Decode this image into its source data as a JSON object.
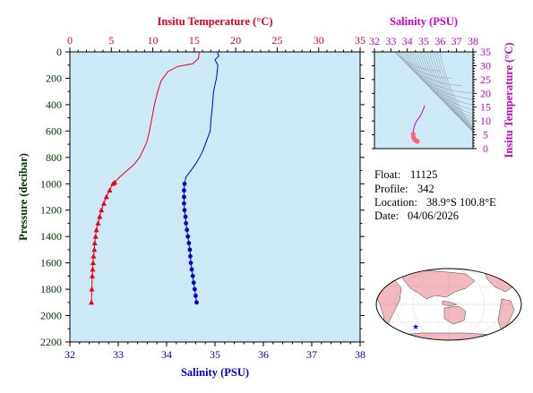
{
  "colors": {
    "temperature": "#e8001c",
    "salinity": "#0000cc",
    "pressure_axis": "#003300",
    "ts_axis": "#cc00cc",
    "panel_bg": "#cde9f6",
    "ts_curve": "#ff6080",
    "land": "#f4b8c0",
    "ocean": "#ffffff",
    "float_marker": "#0000ff"
  },
  "info": {
    "float_label": "Float:",
    "float_value": "11125",
    "profile_label": "Profile:",
    "profile_value": "342",
    "location_label": "Location:",
    "location_value": "38.9°S  100.8°E",
    "date_label": "Date:",
    "date_value": "04/06/2026"
  },
  "chart_data": [
    {
      "type": "line",
      "top_axis": {
        "label": "Insitu Temperature (°C)",
        "range": [
          0,
          35
        ],
        "ticks": [
          "0",
          "5",
          "10",
          "15",
          "20",
          "25",
          "30",
          "35"
        ]
      },
      "bottom_axis": {
        "label": "Salinity (PSU)",
        "range": [
          32,
          38
        ],
        "ticks": [
          "32",
          "33",
          "34",
          "35",
          "36",
          "37",
          "38"
        ]
      },
      "left_axis": {
        "label": "Pressure (decibar)",
        "range": [
          0,
          2200
        ],
        "inverted": true,
        "ticks": [
          "0",
          "200",
          "400",
          "600",
          "800",
          "1000",
          "1200",
          "1400",
          "1600",
          "1800",
          "2000",
          "2200"
        ]
      },
      "series": [
        {
          "axis": "top",
          "marker": "triangle",
          "marker_from_pressure": 990,
          "x": [
            15.6,
            15.5,
            14.8,
            13.0,
            11.8,
            11.0,
            10.6,
            10.2,
            9.9,
            9.6,
            9.3,
            8.8,
            8.4,
            7.8,
            6.9,
            6.0,
            5.4,
            5.2,
            4.8,
            4.4,
            4.1,
            3.8,
            3.6,
            3.4,
            3.2,
            3.1,
            3.0,
            2.95,
            2.85,
            2.8,
            2.75,
            2.7,
            2.65,
            2.6
          ],
          "y": [
            5,
            50,
            90,
            110,
            150,
            220,
            300,
            400,
            500,
            600,
            680,
            750,
            800,
            850,
            900,
            950,
            990,
            1000,
            1050,
            1100,
            1150,
            1200,
            1250,
            1300,
            1350,
            1400,
            1450,
            1500,
            1550,
            1600,
            1650,
            1700,
            1800,
            1900
          ]
        },
        {
          "axis": "bottom",
          "marker": "circle",
          "marker_from_pressure": 1000,
          "x": [
            35.05,
            35.08,
            35.0,
            35.06,
            35.03,
            34.97,
            34.95,
            34.92,
            34.9,
            34.85,
            34.8,
            34.75,
            34.68,
            34.6,
            34.5,
            34.4,
            34.37,
            34.36,
            34.36,
            34.36,
            34.37,
            34.39,
            34.4,
            34.42,
            34.44,
            34.46,
            34.48,
            34.49,
            34.5,
            34.52,
            34.54,
            34.56,
            34.58,
            34.6,
            34.62
          ],
          "y": [
            5,
            30,
            60,
            100,
            200,
            300,
            400,
            500,
            600,
            650,
            700,
            750,
            800,
            850,
            900,
            950,
            1000,
            1050,
            1100,
            1150,
            1200,
            1250,
            1300,
            1350,
            1400,
            1450,
            1500,
            1550,
            1600,
            1650,
            1700,
            1750,
            1800,
            1850,
            1900
          ]
        }
      ]
    },
    {
      "type": "line",
      "top_axis": {
        "label": "Salinity (PSU)",
        "range": [
          32,
          38
        ],
        "ticks": [
          "32",
          "33",
          "34",
          "35",
          "36",
          "37",
          "38"
        ]
      },
      "right_axis": {
        "label": "Insitu Temperature (°C)",
        "range": [
          0,
          35
        ],
        "ticks": [
          "0",
          "5",
          "10",
          "15",
          "20",
          "25",
          "30",
          "35"
        ]
      },
      "series": [
        {
          "x": [
            34.62,
            34.55,
            34.48,
            34.42,
            34.38,
            34.36,
            34.38,
            34.45,
            34.55,
            34.7,
            34.85,
            35.0,
            35.05
          ],
          "y": [
            2.6,
            2.8,
            3.1,
            3.5,
            4.1,
            5.2,
            6.9,
            8.4,
            9.9,
            11.0,
            12.5,
            14.5,
            15.6
          ]
        }
      ]
    }
  ],
  "map": {
    "marker": "★"
  }
}
